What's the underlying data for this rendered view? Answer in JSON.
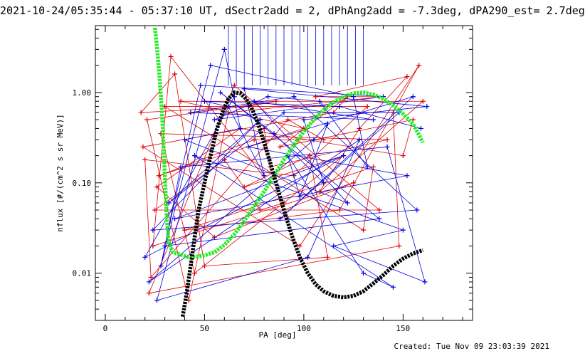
{
  "header": {
    "title": "2021-10-24/05:35:44 - 05:37:10 UT, dSectr2add = 2, dPhAng2add = -7.3deg, dPA290_est=  2.7deg"
  },
  "footer": {
    "created": "Created: Tue Nov 09 23:03:39 2021"
  },
  "chart_data": {
    "type": "scatter",
    "title": "2021-10-24/05:35:44 - 05:37:10 UT, dSectr2add = 2, dPhAng2add = -7.3deg, dPA290_est=  2.7deg",
    "xlabel": "PA [deg]",
    "ylabel": "nflux [#/(cm^2 s sr MeV)]",
    "xlim": [
      -5,
      185
    ],
    "ylim": [
      0.003,
      5.5
    ],
    "ylog": true,
    "x_ticks": [
      0,
      50,
      100,
      150
    ],
    "x_tick_labels": [
      "0",
      "50",
      "100",
      "150"
    ],
    "y_ticks": [
      0.01,
      0.1,
      1.0
    ],
    "y_tick_labels": [
      "0.01",
      "0.10",
      "1.00"
    ],
    "colors": {
      "red": "#e00000",
      "blue": "#0000e0",
      "green": "#22ee22",
      "black": "#000000"
    },
    "series": [
      {
        "color": "#e00000",
        "marker": "plus",
        "points": [
          [
            18,
            0.6
          ],
          [
            19,
            0.25
          ],
          [
            20,
            0.18
          ],
          [
            21,
            0.5
          ],
          [
            22,
            0.006
          ],
          [
            23,
            0.009
          ],
          [
            24,
            0.02
          ],
          [
            25,
            0.05
          ],
          [
            26,
            0.09
          ],
          [
            27,
            0.12
          ],
          [
            28,
            0.35
          ],
          [
            30,
            0.7
          ],
          [
            33,
            2.5
          ],
          [
            35,
            1.6
          ],
          [
            38,
            0.8
          ],
          [
            40,
            0.03
          ],
          [
            42,
            0.005
          ],
          [
            45,
            0.01
          ],
          [
            50,
            0.012
          ],
          [
            55,
            0.025
          ],
          [
            60,
            0.18
          ],
          [
            62,
            0.6
          ],
          [
            65,
            1.2
          ],
          [
            68,
            0.4
          ],
          [
            70,
            0.09
          ],
          [
            72,
            0.7
          ],
          [
            75,
            0.3
          ],
          [
            78,
            0.05
          ],
          [
            80,
            0.4
          ],
          [
            83,
            0.15
          ],
          [
            86,
            0.8
          ],
          [
            88,
            0.25
          ],
          [
            90,
            0.06
          ],
          [
            92,
            0.5
          ],
          [
            95,
            0.12
          ],
          [
            98,
            0.02
          ],
          [
            100,
            0.4
          ],
          [
            103,
            0.2
          ],
          [
            106,
            0.9
          ],
          [
            108,
            0.08
          ],
          [
            110,
            0.3
          ],
          [
            112,
            0.015
          ],
          [
            115,
            0.6
          ],
          [
            118,
            0.05
          ],
          [
            120,
            0.2
          ],
          [
            122,
            0.9
          ],
          [
            125,
            0.1
          ],
          [
            128,
            0.4
          ],
          [
            130,
            0.03
          ],
          [
            132,
            0.7
          ],
          [
            135,
            0.15
          ],
          [
            138,
            0.05
          ],
          [
            140,
            0.9
          ],
          [
            142,
            0.3
          ],
          [
            145,
            0.6
          ],
          [
            148,
            0.02
          ],
          [
            150,
            0.2
          ],
          [
            152,
            1.5
          ],
          [
            155,
            0.5
          ],
          [
            158,
            2.0
          ],
          [
            160,
            0.8
          ]
        ]
      },
      {
        "color": "#0000e0",
        "marker": "plus",
        "points": [
          [
            20,
            0.015
          ],
          [
            22,
            0.008
          ],
          [
            24,
            0.03
          ],
          [
            26,
            0.005
          ],
          [
            28,
            0.012
          ],
          [
            30,
            0.02
          ],
          [
            32,
            0.06
          ],
          [
            35,
            0.04
          ],
          [
            38,
            0.15
          ],
          [
            40,
            0.3
          ],
          [
            43,
            0.6
          ],
          [
            45,
            0.2
          ],
          [
            48,
            1.2
          ],
          [
            50,
            0.8
          ],
          [
            53,
            2.0
          ],
          [
            55,
            0.5
          ],
          [
            58,
            1.0
          ],
          [
            60,
            3.0
          ],
          [
            62,
            0.7
          ],
          [
            65,
            0.9
          ],
          [
            68,
            0.4
          ],
          [
            70,
            1.1
          ],
          [
            72,
            0.25
          ],
          [
            75,
            0.8
          ],
          [
            78,
            0.5
          ],
          [
            80,
            0.12
          ],
          [
            82,
            0.9
          ],
          [
            85,
            0.35
          ],
          [
            88,
            0.04
          ],
          [
            90,
            0.6
          ],
          [
            92,
            0.2
          ],
          [
            95,
            0.9
          ],
          [
            98,
            0.07
          ],
          [
            100,
            0.5
          ],
          [
            102,
            0.015
          ],
          [
            105,
            0.3
          ],
          [
            108,
            0.8
          ],
          [
            110,
            0.1
          ],
          [
            112,
            0.45
          ],
          [
            115,
            0.02
          ],
          [
            118,
            0.7
          ],
          [
            120,
            0.2
          ],
          [
            122,
            0.06
          ],
          [
            125,
            0.9
          ],
          [
            128,
            0.3
          ],
          [
            130,
            0.01
          ],
          [
            132,
            0.15
          ],
          [
            135,
            0.5
          ],
          [
            138,
            0.04
          ],
          [
            140,
            0.9
          ],
          [
            142,
            0.25
          ],
          [
            145,
            0.007
          ],
          [
            148,
            0.6
          ],
          [
            150,
            0.03
          ],
          [
            152,
            0.12
          ],
          [
            155,
            0.9
          ],
          [
            157,
            0.05
          ],
          [
            159,
            0.4
          ],
          [
            161,
            0.008
          ],
          [
            162,
            0.7
          ]
        ]
      },
      {
        "color": "#22ee22",
        "marker": "thick-dashed-curve",
        "points": [
          [
            25,
            5.2
          ],
          [
            26,
            3.2
          ],
          [
            27,
            1.8
          ],
          [
            28,
            0.9
          ],
          [
            29,
            0.4
          ],
          [
            30,
            0.12
          ],
          [
            31,
            0.04
          ],
          [
            32,
            0.022
          ],
          [
            34,
            0.017
          ],
          [
            38,
            0.016
          ],
          [
            42,
            0.015
          ],
          [
            46,
            0.0152
          ],
          [
            50,
            0.0158
          ],
          [
            55,
            0.017
          ],
          [
            60,
            0.0205
          ],
          [
            65,
            0.027
          ],
          [
            70,
            0.038
          ],
          [
            75,
            0.055
          ],
          [
            80,
            0.08
          ],
          [
            85,
            0.12
          ],
          [
            90,
            0.18
          ],
          [
            95,
            0.26
          ],
          [
            100,
            0.37
          ],
          [
            105,
            0.5
          ],
          [
            110,
            0.64
          ],
          [
            115,
            0.78
          ],
          [
            120,
            0.9
          ],
          [
            125,
            0.98
          ],
          [
            130,
            1.0
          ],
          [
            135,
            0.95
          ],
          [
            140,
            0.85
          ],
          [
            145,
            0.72
          ],
          [
            150,
            0.58
          ],
          [
            155,
            0.45
          ],
          [
            160,
            0.28
          ]
        ]
      },
      {
        "color": "#000000",
        "marker": "thick-dashed-curve",
        "points": [
          [
            39,
            0.0033
          ],
          [
            41,
            0.006
          ],
          [
            43,
            0.012
          ],
          [
            45,
            0.025
          ],
          [
            47,
            0.05
          ],
          [
            50,
            0.1
          ],
          [
            53,
            0.2
          ],
          [
            56,
            0.38
          ],
          [
            59,
            0.6
          ],
          [
            62,
            0.85
          ],
          [
            65,
            1.0
          ],
          [
            68,
            0.98
          ],
          [
            71,
            0.85
          ],
          [
            74,
            0.65
          ],
          [
            77,
            0.45
          ],
          [
            80,
            0.28
          ],
          [
            83,
            0.17
          ],
          [
            86,
            0.1
          ],
          [
            90,
            0.05
          ],
          [
            94,
            0.026
          ],
          [
            98,
            0.015
          ],
          [
            102,
            0.01
          ],
          [
            106,
            0.0075
          ],
          [
            110,
            0.0063
          ],
          [
            115,
            0.0056
          ],
          [
            120,
            0.0054
          ],
          [
            125,
            0.0056
          ],
          [
            130,
            0.0063
          ],
          [
            135,
            0.0077
          ],
          [
            140,
            0.0095
          ],
          [
            145,
            0.012
          ],
          [
            150,
            0.0145
          ],
          [
            155,
            0.0165
          ],
          [
            160,
            0.018
          ]
        ]
      }
    ]
  }
}
